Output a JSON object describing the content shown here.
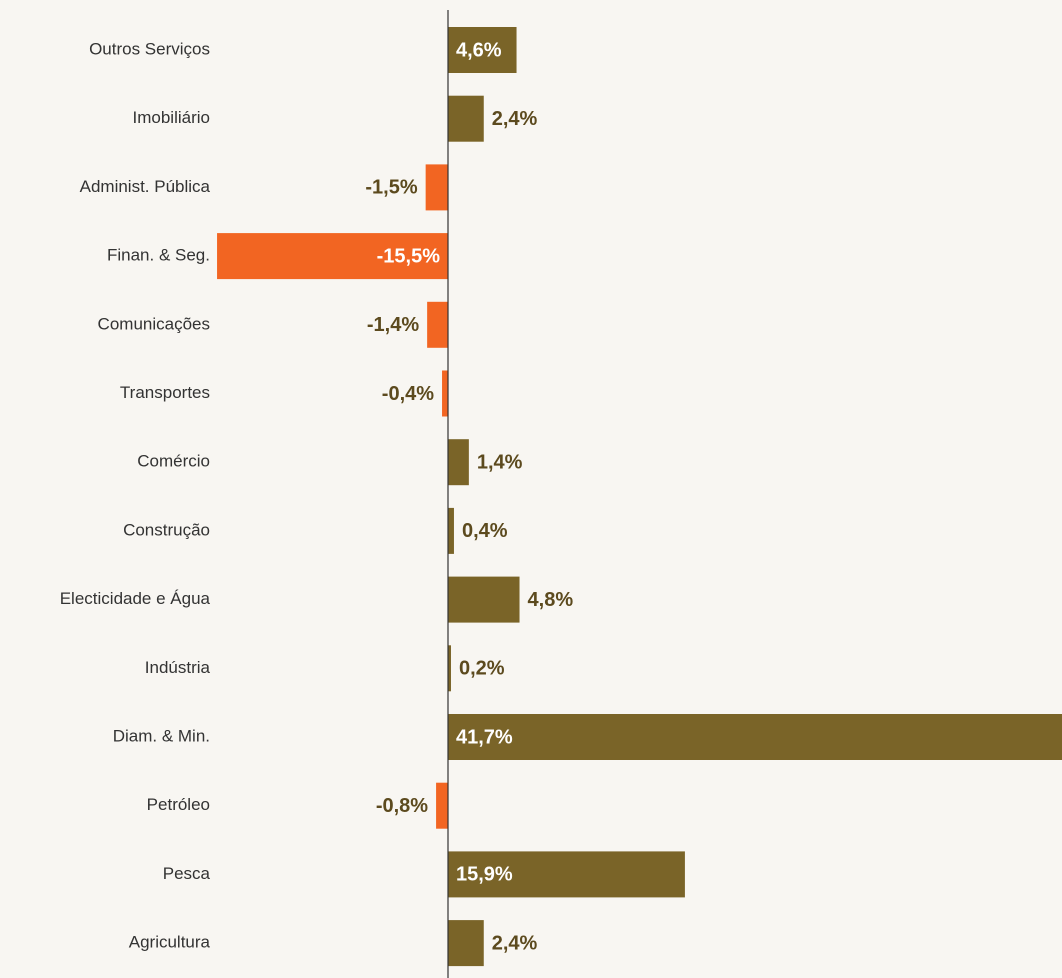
{
  "chart_data": {
    "type": "bar",
    "categories": [
      "Outros Serviços",
      "Imobiliário",
      "Administ. Pública",
      "Finan. & Seg.",
      "Comunicações",
      "Transportes",
      "Comércio",
      "Construção",
      "Electicidade e Água",
      "Indústria",
      "Diam. & Min.",
      "Petróleo",
      "Pesca",
      "Agricultura"
    ],
    "values": [
      4.6,
      2.4,
      -1.5,
      -15.5,
      -1.4,
      -0.4,
      1.4,
      0.4,
      4.8,
      0.2,
      41.7,
      -0.8,
      15.9,
      2.4
    ],
    "value_labels": [
      "4,6%",
      "2,4%",
      "-1,5%",
      "-15,5%",
      "-1,4%",
      "-0,4%",
      "1,4%",
      "0,4%",
      "4,8%",
      "0,2%",
      "41,7%",
      "-0,8%",
      "15,9%",
      "2,4%"
    ],
    "positive_color": "#7a6428",
    "negative_color": "#f26522"
  }
}
